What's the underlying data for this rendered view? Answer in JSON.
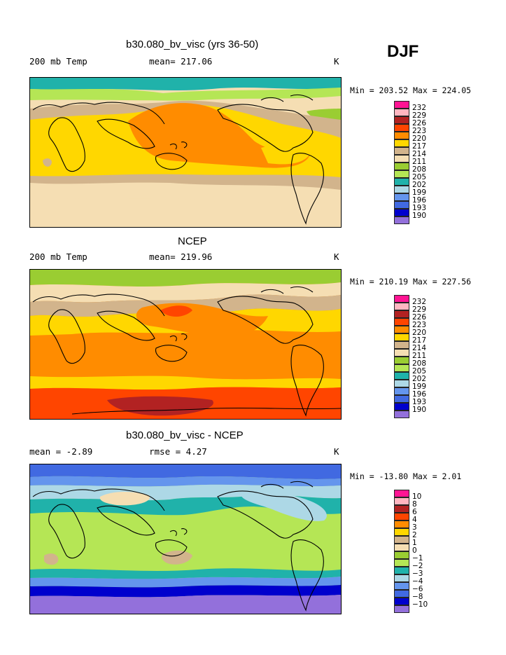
{
  "season": "DJF",
  "panels": [
    {
      "title": "b30.080_bv_visc (yrs 36-50)",
      "left_label": "200 mb Temp",
      "center_label": "mean= 217.06",
      "units": "K",
      "stats": "Min = 203.52 Max = 224.05",
      "colorbar": {
        "labels": [
          "232",
          "229",
          "226",
          "223",
          "220",
          "217",
          "214",
          "211",
          "208",
          "205",
          "202",
          "199",
          "196",
          "193",
          "190"
        ],
        "colors": [
          "#ff1493",
          "#ffb6c1",
          "#b22222",
          "#ff4500",
          "#ff8c00",
          "#ffd700",
          "#d2b48c",
          "#f5deb3",
          "#9acd32",
          "#b5e655",
          "#20b2aa",
          "#add8e6",
          "#6495ed",
          "#4169e1",
          "#0000cd",
          "#9370db"
        ]
      }
    },
    {
      "title": "NCEP",
      "left_label": "200 mb Temp",
      "center_label": "mean= 219.96",
      "units": "K",
      "stats": "Min = 210.19 Max = 227.56",
      "colorbar": {
        "labels": [
          "232",
          "229",
          "226",
          "223",
          "220",
          "217",
          "214",
          "211",
          "208",
          "205",
          "202",
          "199",
          "196",
          "193",
          "190"
        ],
        "colors": [
          "#ff1493",
          "#ffb6c1",
          "#b22222",
          "#ff4500",
          "#ff8c00",
          "#ffd700",
          "#d2b48c",
          "#f5deb3",
          "#9acd32",
          "#b5e655",
          "#20b2aa",
          "#add8e6",
          "#6495ed",
          "#4169e1",
          "#0000cd",
          "#9370db"
        ]
      }
    },
    {
      "title": "b30.080_bv_visc - NCEP",
      "left_label": "mean =   -2.89",
      "center_label": "rmse =   4.27",
      "units": "K",
      "stats": "Min = -13.80 Max =   2.01",
      "colorbar": {
        "labels": [
          "10",
          "8",
          "6",
          "4",
          "3",
          "2",
          "1",
          "0",
          "−1",
          "−2",
          "−3",
          "−4",
          "−6",
          "−8",
          "−10"
        ],
        "colors": [
          "#ff1493",
          "#ffb6c1",
          "#b22222",
          "#ff4500",
          "#ff8c00",
          "#ffd700",
          "#d2b48c",
          "#f5deb3",
          "#9acd32",
          "#b5e655",
          "#20b2aa",
          "#add8e6",
          "#6495ed",
          "#4169e1",
          "#0000cd",
          "#9370db"
        ]
      }
    }
  ]
}
